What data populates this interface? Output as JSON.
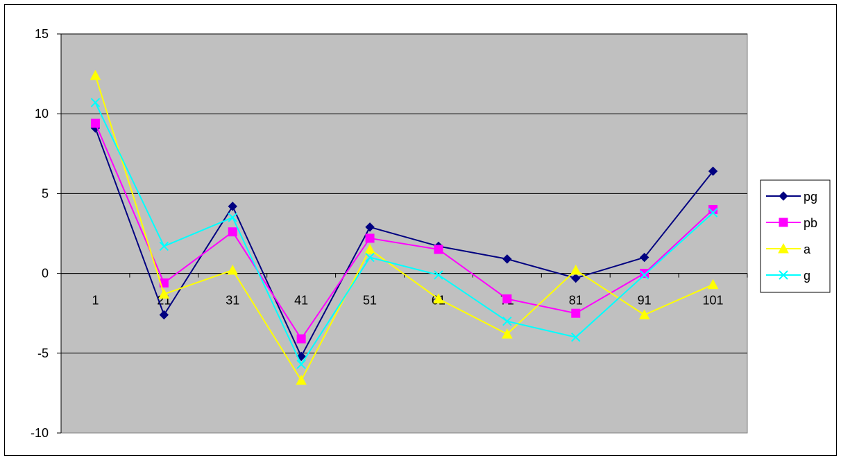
{
  "chart_data": {
    "type": "line",
    "title": "",
    "xlabel": "",
    "ylabel": "",
    "categories": [
      "1",
      "21",
      "31",
      "41",
      "51",
      "61",
      "71",
      "81",
      "91",
      "101"
    ],
    "ylim": [
      -10,
      15
    ],
    "yticks": [
      -10,
      -5,
      0,
      5,
      10,
      15
    ],
    "grid": true,
    "legend_position": "right",
    "plot_background": "#c0c0c0",
    "series": [
      {
        "name": "pg",
        "color": "#000080",
        "marker": "diamond",
        "values": [
          9.1,
          -2.6,
          4.2,
          -5.2,
          2.9,
          1.7,
          0.9,
          -0.3,
          1.0,
          6.4
        ]
      },
      {
        "name": "pb",
        "color": "#ff00ff",
        "marker": "square",
        "values": [
          9.4,
          -0.6,
          2.6,
          -4.1,
          2.2,
          1.5,
          -1.6,
          -2.5,
          0.0,
          4.0
        ]
      },
      {
        "name": "a",
        "color": "#ffff00",
        "marker": "triangle",
        "values": [
          12.4,
          -1.3,
          0.2,
          -6.7,
          1.5,
          -1.6,
          -3.8,
          0.2,
          -2.6,
          -0.7
        ]
      },
      {
        "name": "g",
        "color": "#00ffff",
        "marker": "x",
        "values": [
          10.7,
          1.7,
          3.5,
          -5.7,
          1.0,
          -0.1,
          -3.0,
          -4.0,
          -0.1,
          3.8
        ]
      }
    ]
  }
}
